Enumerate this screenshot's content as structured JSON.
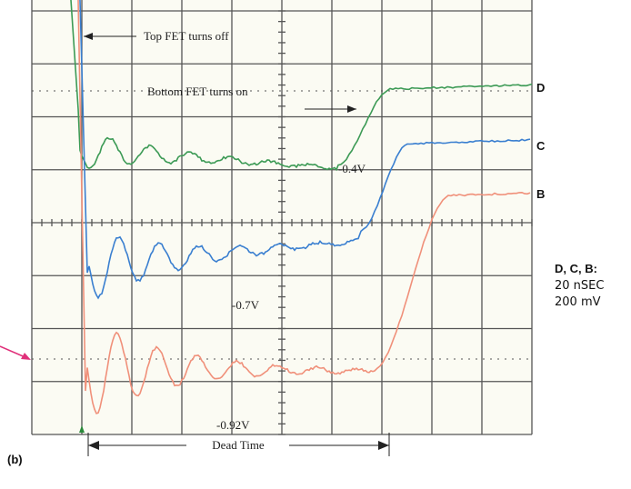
{
  "annotations": {
    "top_fet": "Top FET turns off",
    "bottom_fet": "Bottom FET turns on",
    "v1": "-0.4V",
    "v2": "-0.7V",
    "v3": "-0.92V",
    "dead_time": "Dead Time"
  },
  "traces": {
    "d": "D",
    "c": "C",
    "b": "B"
  },
  "settings": {
    "title": "D, C, B:",
    "time": "20 nSEC",
    "volt": "200 mV"
  },
  "panel_label": "(b)"
}
